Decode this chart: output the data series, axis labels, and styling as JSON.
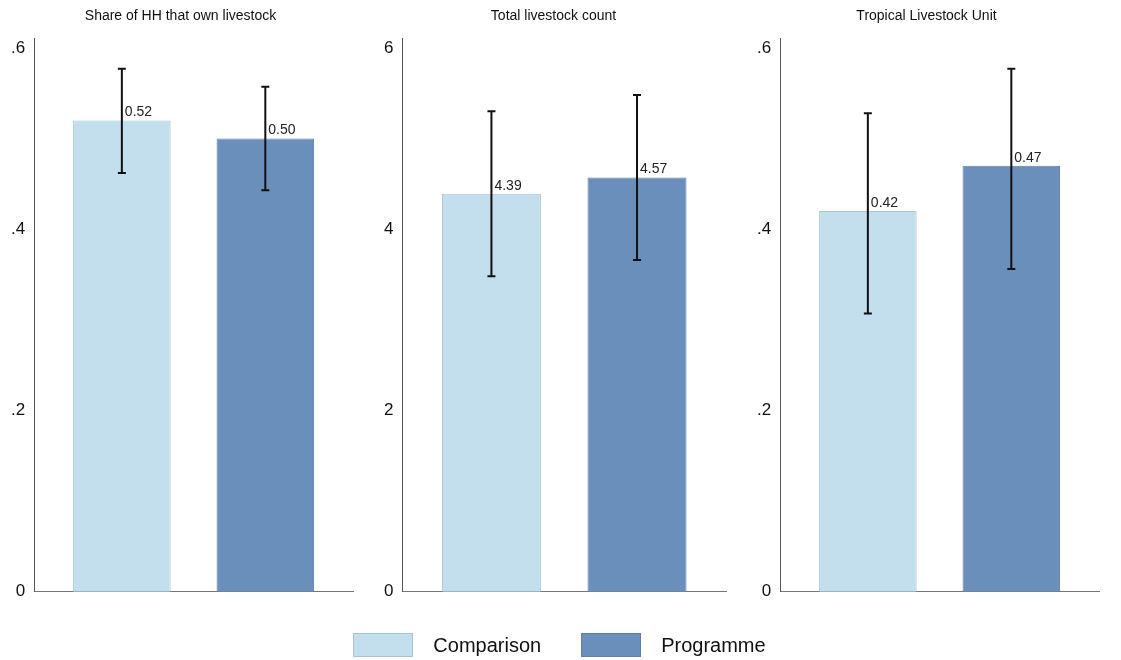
{
  "chart_data": [
    {
      "type": "bar",
      "title": "Share of HH that own livestock",
      "categories": [
        null
      ],
      "ylim": [
        0,
        0.61
      ],
      "yticks": [
        0,
        {
          "value": 0.2,
          "label": ".2"
        },
        {
          "value": 0.4,
          "label": ".4"
        },
        {
          "value": 0.6,
          "label": ".6"
        }
      ],
      "tick_labels": "y",
      "grid": false,
      "legend": false,
      "series": [
        {
          "color": "#c3dfee",
          "values": [
            0.52
          ],
          "value_labels": [
            "0.52"
          ],
          "errors": [
            [
              0.462,
              0.577
            ]
          ]
        },
        {
          "color": "#6b8fbb",
          "values": [
            0.5
          ],
          "value_labels": [
            "0.50"
          ],
          "errors": [
            [
              0.443,
              0.557
            ]
          ]
        }
      ]
    },
    {
      "type": "bar",
      "title": "Total livestock count",
      "categories": [
        null
      ],
      "ylim": [
        0,
        6.1
      ],
      "yticks": [
        0,
        2,
        4,
        6
      ],
      "tick_labels": "y",
      "grid": false,
      "legend": "bottom",
      "series": [
        {
          "name": "Comparison",
          "color": "#c3dfee",
          "values": [
            4.39
          ],
          "value_labels": [
            "4.39"
          ],
          "errors": [
            [
              3.48,
              5.3
            ]
          ]
        },
        {
          "name": "Programme",
          "color": "#6b8fbb",
          "values": [
            4.57
          ],
          "value_labels": [
            "4.57"
          ],
          "errors": [
            [
              3.66,
              5.48
            ]
          ]
        }
      ]
    },
    {
      "type": "bar",
      "title": "Tropical Livestock Unit",
      "categories": [
        null
      ],
      "ylim": [
        0,
        0.61
      ],
      "yticks": [
        0,
        {
          "value": 0.2,
          "label": ".2"
        },
        {
          "value": 0.4,
          "label": ".4"
        },
        {
          "value": 0.6,
          "label": ".6"
        }
      ],
      "tick_labels": "y",
      "grid": false,
      "legend": false,
      "series": [
        {
          "color": "#c3dfee",
          "values": [
            0.42
          ],
          "value_labels": [
            "0.42"
          ],
          "errors": [
            [
              0.307,
              0.528
            ]
          ]
        },
        {
          "color": "#6b8fbb",
          "values": [
            0.47
          ],
          "value_labels": [
            "0.47"
          ],
          "errors": [
            [
              0.356,
              0.577
            ]
          ]
        }
      ]
    }
  ]
}
